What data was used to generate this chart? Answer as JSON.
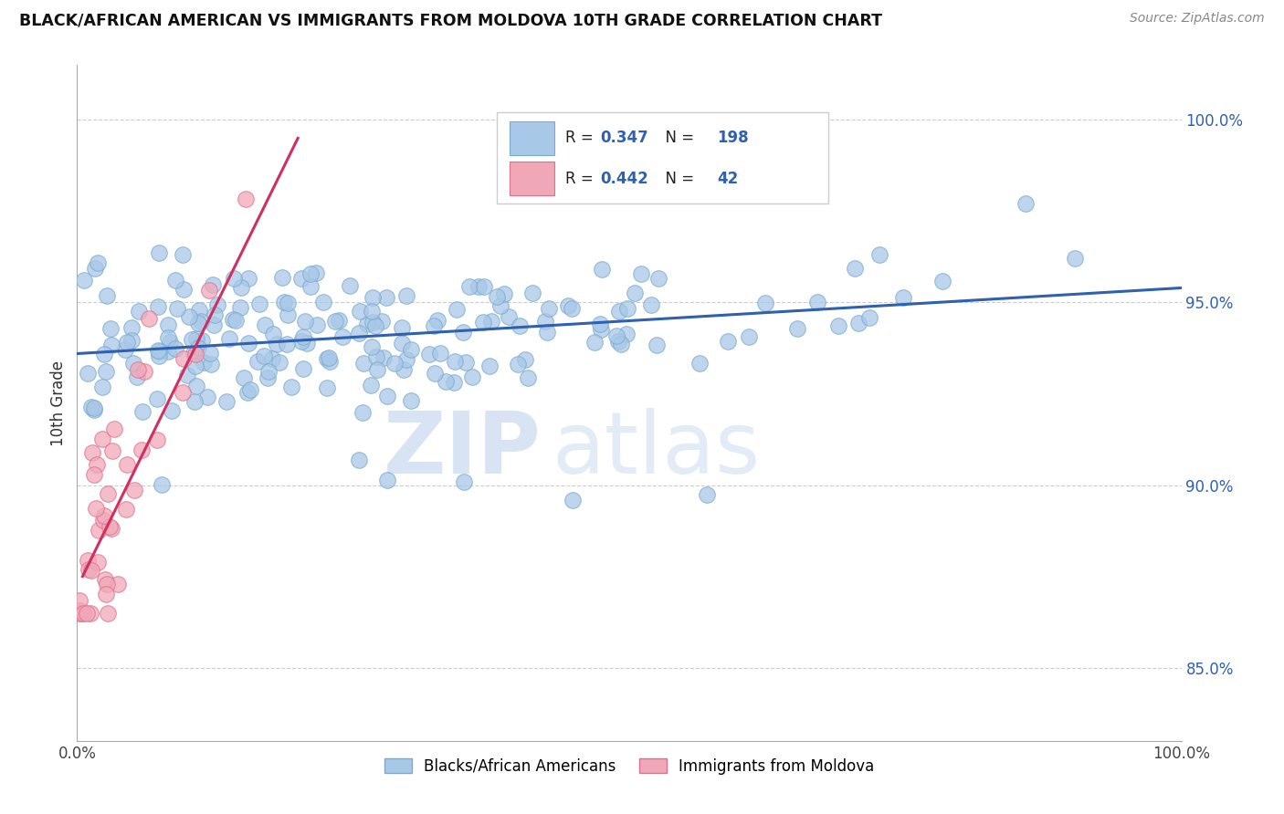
{
  "title": "BLACK/AFRICAN AMERICAN VS IMMIGRANTS FROM MOLDOVA 10TH GRADE CORRELATION CHART",
  "source_text": "Source: ZipAtlas.com",
  "ylabel": "10th Grade",
  "watermark_zip": "ZIP",
  "watermark_atlas": "atlas",
  "xlim": [
    0.0,
    100.0
  ],
  "ylim": [
    83.0,
    101.5
  ],
  "yticks": [
    85.0,
    90.0,
    95.0,
    100.0
  ],
  "ytick_labels": [
    "85.0%",
    "90.0%",
    "95.0%",
    "100.0%"
  ],
  "blue_R": 0.347,
  "blue_N": 198,
  "pink_R": 0.442,
  "pink_N": 42,
  "blue_color": "#a8c8e8",
  "pink_color": "#f0a8b8",
  "blue_edge_color": "#7aaad0",
  "pink_edge_color": "#e07090",
  "blue_line_color": "#3060b0",
  "pink_line_color": "#d03060",
  "value_color": "#3060b0",
  "legend_label_blue": "Blacks/African Americans",
  "legend_label_pink": "Immigrants from Moldova",
  "blue_trendline_x": [
    0.0,
    100.0
  ],
  "blue_trendline_y": [
    93.6,
    95.4
  ],
  "pink_trendline_x": [
    0.5,
    20.0
  ],
  "pink_trendline_y": [
    87.5,
    99.5
  ]
}
